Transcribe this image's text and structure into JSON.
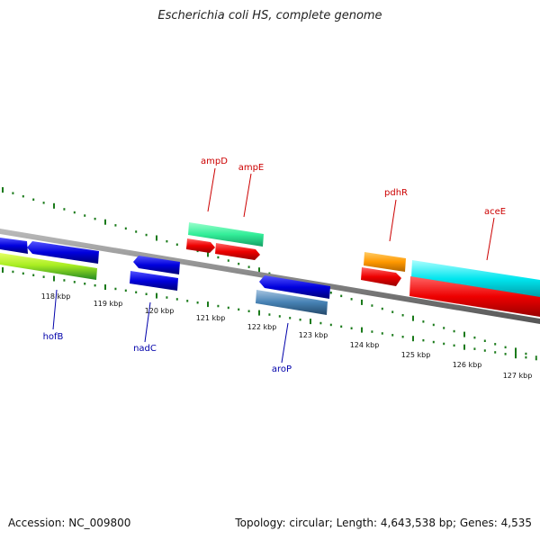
{
  "title": "Escherichia coli HS, complete genome",
  "footer": {
    "accession": "Accession: NC_009800",
    "topology": "Topology: circular; Length: 4,643,538 bp; Genes: 4,535"
  },
  "ruler": {
    "ticks": [
      "118 kbp",
      "119 kbp",
      "120 kbp",
      "121 kbp",
      "122 kbp",
      "123 kbp",
      "124 kbp",
      "125 kbp",
      "126 kbp",
      "127 kbp"
    ]
  },
  "gene_labels": {
    "top": [
      "ampD",
      "ampE",
      "pdhR",
      "aceE"
    ],
    "bottom": [
      "hofB",
      "nadC",
      "aroP"
    ]
  },
  "colors": {
    "forward_label": "#cc0000",
    "reverse_label": "#0000aa",
    "tick": "#1a7a1a",
    "backbone": "#888888",
    "red_gene": "#ee0000",
    "blue_gene": "#0000dd",
    "cyan_gene": "#00e5ee",
    "teal_gene": "#33ee99",
    "orange_gene": "#ff9900",
    "steel_gene": "#4682b4",
    "lime_gene": "#aaee22"
  }
}
